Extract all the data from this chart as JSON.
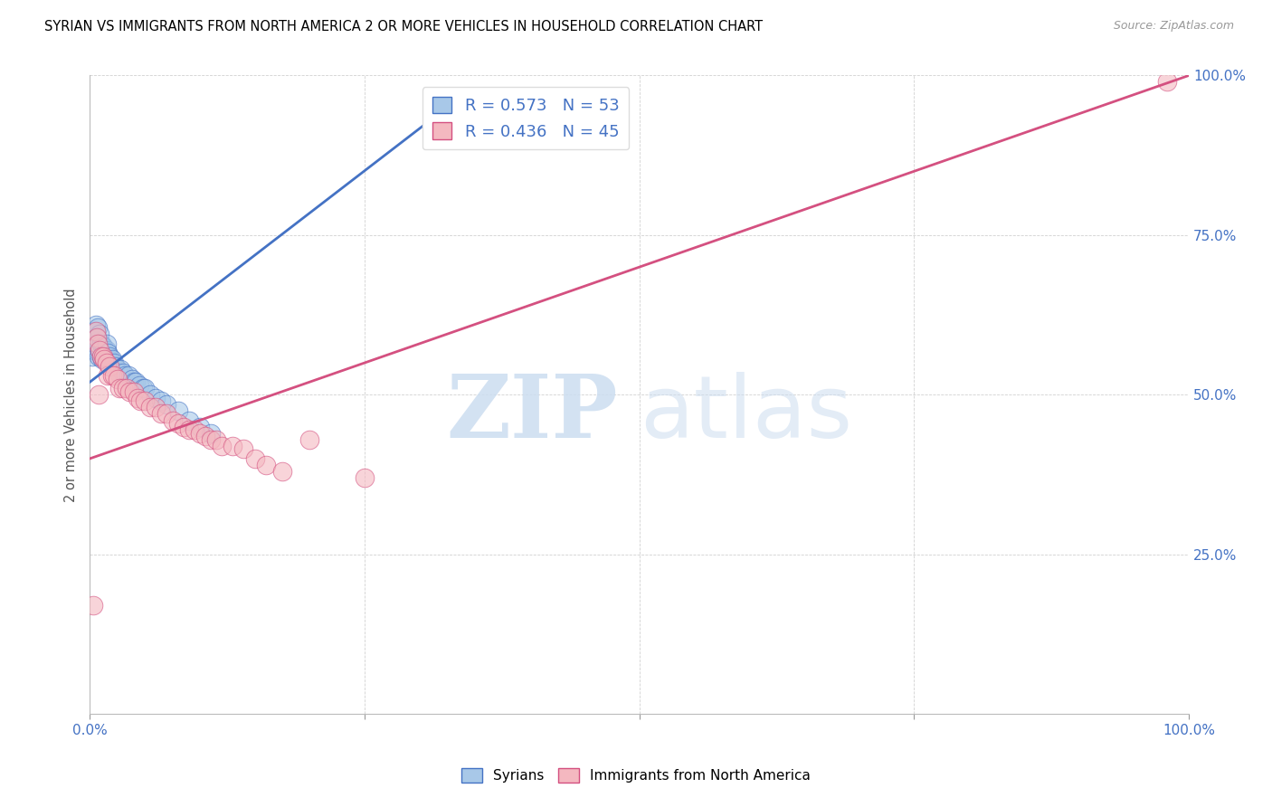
{
  "title": "SYRIAN VS IMMIGRANTS FROM NORTH AMERICA 2 OR MORE VEHICLES IN HOUSEHOLD CORRELATION CHART",
  "source": "Source: ZipAtlas.com",
  "ylabel": "2 or more Vehicles in Household",
  "xlim": [
    0,
    1
  ],
  "ylim": [
    0,
    1
  ],
  "legend_r_blue": "R = 0.573",
  "legend_n_blue": "N = 53",
  "legend_r_pink": "R = 0.436",
  "legend_n_pink": "N = 45",
  "blue_color": "#a8c8e8",
  "pink_color": "#f4b8c0",
  "line_blue": "#4472c4",
  "line_pink": "#d45080",
  "watermark_zip": "ZIP",
  "watermark_atlas": "atlas",
  "syrians_x": [
    0.002,
    0.003,
    0.004,
    0.004,
    0.005,
    0.005,
    0.006,
    0.006,
    0.007,
    0.007,
    0.008,
    0.008,
    0.009,
    0.009,
    0.01,
    0.01,
    0.011,
    0.011,
    0.012,
    0.012,
    0.013,
    0.013,
    0.014,
    0.015,
    0.015,
    0.016,
    0.017,
    0.018,
    0.019,
    0.02,
    0.021,
    0.022,
    0.023,
    0.025,
    0.026,
    0.028,
    0.03,
    0.032,
    0.035,
    0.038,
    0.04,
    0.042,
    0.045,
    0.048,
    0.05,
    0.055,
    0.06,
    0.065,
    0.07,
    0.08,
    0.09,
    0.1,
    0.11
  ],
  "syrians_y": [
    0.56,
    0.59,
    0.57,
    0.6,
    0.58,
    0.61,
    0.57,
    0.59,
    0.575,
    0.605,
    0.56,
    0.58,
    0.57,
    0.595,
    0.56,
    0.58,
    0.555,
    0.575,
    0.56,
    0.575,
    0.565,
    0.57,
    0.555,
    0.57,
    0.58,
    0.565,
    0.555,
    0.56,
    0.55,
    0.555,
    0.545,
    0.55,
    0.545,
    0.54,
    0.535,
    0.54,
    0.535,
    0.53,
    0.53,
    0.525,
    0.52,
    0.52,
    0.515,
    0.51,
    0.51,
    0.5,
    0.495,
    0.49,
    0.485,
    0.475,
    0.46,
    0.45,
    0.44
  ],
  "immigrants_x": [
    0.003,
    0.005,
    0.006,
    0.007,
    0.008,
    0.009,
    0.01,
    0.012,
    0.013,
    0.015,
    0.016,
    0.018,
    0.02,
    0.022,
    0.025,
    0.027,
    0.03,
    0.033,
    0.036,
    0.04,
    0.043,
    0.046,
    0.05,
    0.055,
    0.06,
    0.065,
    0.07,
    0.075,
    0.08,
    0.085,
    0.09,
    0.095,
    0.1,
    0.105,
    0.11,
    0.115,
    0.12,
    0.13,
    0.14,
    0.15,
    0.16,
    0.175,
    0.2,
    0.25,
    0.98
  ],
  "immigrants_y": [
    0.17,
    0.6,
    0.59,
    0.58,
    0.5,
    0.57,
    0.56,
    0.56,
    0.555,
    0.55,
    0.53,
    0.545,
    0.53,
    0.53,
    0.525,
    0.51,
    0.51,
    0.51,
    0.505,
    0.505,
    0.495,
    0.49,
    0.49,
    0.48,
    0.48,
    0.47,
    0.47,
    0.46,
    0.455,
    0.45,
    0.445,
    0.445,
    0.44,
    0.435,
    0.43,
    0.43,
    0.42,
    0.42,
    0.415,
    0.4,
    0.39,
    0.38,
    0.43,
    0.37,
    0.99
  ],
  "blue_line_x0": 0.0,
  "blue_line_x1": 0.34,
  "blue_line_y0": 0.52,
  "blue_line_y1": 0.97,
  "pink_line_x0": 0.0,
  "pink_line_x1": 1.0,
  "pink_line_y0": 0.4,
  "pink_line_y1": 1.0
}
